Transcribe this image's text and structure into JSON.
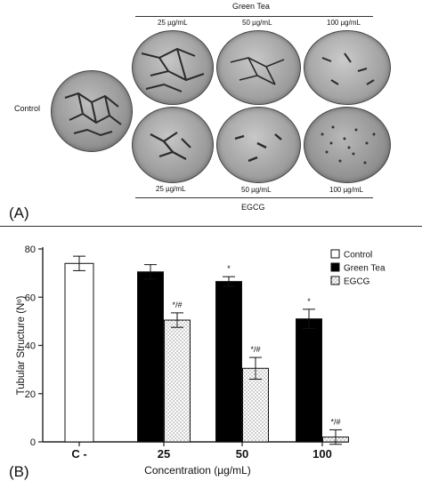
{
  "panelA": {
    "label": "(A)",
    "green_tea_header": "Green Tea",
    "egcg_footer": "EGCG",
    "control_label": "Control",
    "top_concs": [
      "25 µg/mL",
      "50 µg/mL",
      "100 µg/mL"
    ],
    "bottom_concs": [
      "25 µg/mL",
      "50 µg/mL",
      "100 µg/mL"
    ]
  },
  "panelB": {
    "label": "(B)"
  },
  "chart_data": {
    "type": "bar",
    "categories": [
      "C -",
      "25",
      "50",
      "100"
    ],
    "xlabel": "Concentration (µg/mL)",
    "ylabel": "Tubular Structure (Nº)",
    "ylim": [
      0,
      80
    ],
    "yticks": [
      0,
      20,
      40,
      60,
      80
    ],
    "legend_position": "top-right",
    "series": [
      {
        "name": "Control",
        "fill": "#ffffff",
        "pattern": "none",
        "values": [
          74,
          null,
          null,
          null
        ],
        "errors": [
          3,
          null,
          null,
          null
        ],
        "annotations": [
          "",
          "",
          "",
          ""
        ]
      },
      {
        "name": "Green Tea",
        "fill": "#000000",
        "pattern": "none",
        "values": [
          null,
          70.5,
          66.5,
          51
        ],
        "errors": [
          null,
          3,
          2,
          4
        ],
        "annotations": [
          "",
          "",
          "*",
          "*"
        ]
      },
      {
        "name": "EGCG",
        "fill": "#ffffff",
        "pattern": "dots",
        "values": [
          null,
          50.5,
          30.5,
          2
        ],
        "errors": [
          null,
          3,
          4.5,
          3
        ],
        "annotations": [
          "",
          "*/#",
          "*/#",
          "*/#"
        ]
      }
    ]
  }
}
